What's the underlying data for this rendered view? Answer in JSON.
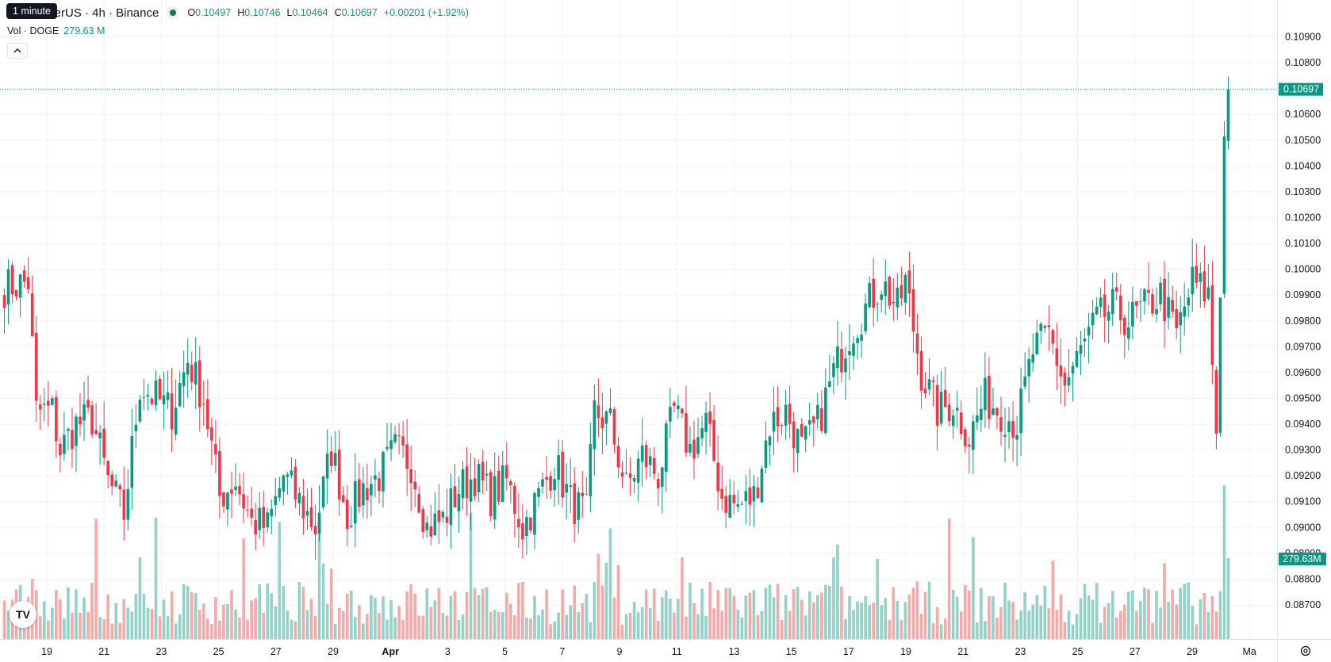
{
  "legend": {
    "tooltip": "1 minute",
    "symbol": "oin / TetherUS · 4h · Binance",
    "open_label": "O",
    "open": "0.10497",
    "high_label": "H",
    "high": "0.10746",
    "low_label": "L",
    "low": "0.10464",
    "close_label": "C",
    "close": "0.10697",
    "change": "+0.00201 (+1.92%)",
    "volume_label": "Vol · DOGE",
    "volume_value": "279.63 M",
    "collapse_glyph": "^"
  },
  "logo_text": "TV",
  "colors": {
    "up": "#089981",
    "down": "#f23645",
    "vol_up": "#92d2c7",
    "vol_down": "#f7a9a7"
  },
  "chart_data": {
    "type": "candlestick",
    "interval": "4h",
    "price_ticks": [
      "0.10900",
      "0.10800",
      "0.10700",
      "0.10600",
      "0.10500",
      "0.10400",
      "0.10300",
      "0.10200",
      "0.10100",
      "0.10000",
      "0.09900",
      "0.09800",
      "0.09700",
      "0.09600",
      "0.09500",
      "0.09400",
      "0.09300",
      "0.09200",
      "0.09100",
      "0.09000",
      "0.08900",
      "0.08800",
      "0.08700"
    ],
    "ylim": [
      0.0866,
      0.1096
    ],
    "last_price": "0.10697",
    "last_volume": "279.63M",
    "x_ticks": [
      "19",
      "21",
      "23",
      "25",
      "27",
      "29",
      "Apr",
      "3",
      "5",
      "7",
      "9",
      "11",
      "13",
      "15",
      "17",
      "19",
      "21",
      "23",
      "25",
      "27",
      "29",
      "Ma"
    ],
    "grid": true,
    "series": [
      {
        "name": "price",
        "anchors": [
          [
            0,
            0.0993
          ],
          [
            6,
            0.0995
          ],
          [
            8,
            0.0945
          ],
          [
            12,
            0.0945
          ],
          [
            14,
            0.093
          ],
          [
            18,
            0.094
          ],
          [
            22,
            0.0942
          ],
          [
            26,
            0.0918
          ],
          [
            30,
            0.0905
          ],
          [
            34,
            0.0955
          ],
          [
            38,
            0.095
          ],
          [
            42,
            0.0945
          ],
          [
            46,
            0.0965
          ],
          [
            50,
            0.095
          ],
          [
            54,
            0.0912
          ],
          [
            58,
            0.0918
          ],
          [
            62,
            0.0902
          ],
          [
            66,
            0.09
          ],
          [
            70,
            0.092
          ],
          [
            74,
            0.091
          ],
          [
            78,
            0.09
          ],
          [
            82,
            0.093
          ],
          [
            86,
            0.0905
          ],
          [
            90,
            0.0915
          ],
          [
            94,
            0.092
          ],
          [
            98,
            0.093
          ],
          [
            102,
            0.0925
          ],
          [
            106,
            0.09
          ],
          [
            110,
            0.0903
          ],
          [
            114,
            0.0915
          ],
          [
            118,
            0.092
          ],
          [
            122,
            0.0912
          ],
          [
            126,
            0.0918
          ],
          [
            130,
            0.09
          ],
          [
            134,
            0.0912
          ],
          [
            138,
            0.0925
          ],
          [
            142,
            0.091
          ],
          [
            146,
            0.0905
          ],
          [
            148,
            0.0945
          ],
          [
            152,
            0.094
          ],
          [
            156,
            0.0915
          ],
          [
            160,
            0.0928
          ],
          [
            164,
            0.092
          ],
          [
            168,
            0.0945
          ],
          [
            172,
            0.093
          ],
          [
            176,
            0.094
          ],
          [
            180,
            0.0912
          ],
          [
            184,
            0.0908
          ],
          [
            188,
            0.0912
          ],
          [
            192,
            0.094
          ],
          [
            196,
            0.0945
          ],
          [
            200,
            0.093
          ],
          [
            204,
            0.094
          ],
          [
            208,
            0.096
          ],
          [
            212,
            0.0975
          ],
          [
            216,
            0.0985
          ],
          [
            220,
            0.0995
          ],
          [
            224,
            0.0985
          ],
          [
            226,
            0.0995
          ],
          [
            230,
            0.096
          ],
          [
            234,
            0.0945
          ],
          [
            238,
            0.0948
          ],
          [
            242,
            0.0935
          ],
          [
            246,
            0.095
          ],
          [
            250,
            0.0945
          ],
          [
            254,
            0.094
          ],
          [
            258,
            0.0968
          ],
          [
            262,
            0.0975
          ],
          [
            266,
            0.0955
          ],
          [
            270,
            0.0968
          ],
          [
            274,
            0.098
          ],
          [
            278,
            0.0985
          ],
          [
            282,
            0.098
          ],
          [
            286,
            0.0985
          ],
          [
            290,
            0.099
          ],
          [
            294,
            0.0975
          ],
          [
            298,
            0.0995
          ],
          [
            302,
            0.099
          ],
          [
            304,
            0.0938
          ],
          [
            306,
            0.105
          ],
          [
            307,
            0.107
          ]
        ]
      }
    ]
  }
}
